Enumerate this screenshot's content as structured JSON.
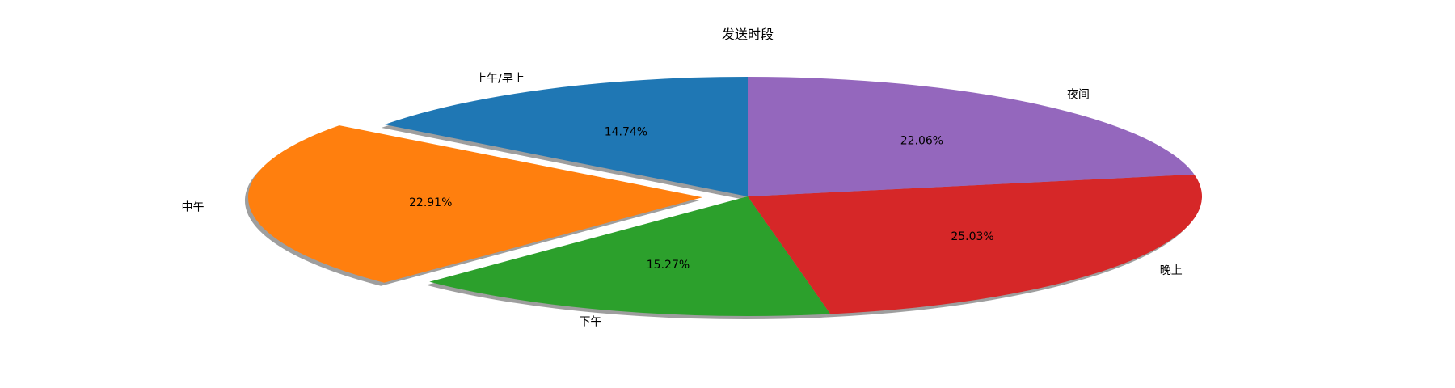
{
  "chart_data": {
    "type": "pie",
    "title": "发送时段",
    "categories": [
      "上午/早上",
      "中午",
      "下午",
      "晚上",
      "夜间"
    ],
    "values": [
      14.74,
      22.91,
      15.27,
      25.03,
      22.06
    ],
    "value_labels": [
      "14.74%",
      "22.91%",
      "15.27%",
      "25.03%",
      "22.06%"
    ],
    "colors": [
      "#1f77b4",
      "#ff7f0e",
      "#2ca02c",
      "#d62728",
      "#9467bd"
    ],
    "exploded": [
      "中午"
    ],
    "shadow": true,
    "start_angle_deg": 90,
    "direction": "counterclockwise"
  }
}
